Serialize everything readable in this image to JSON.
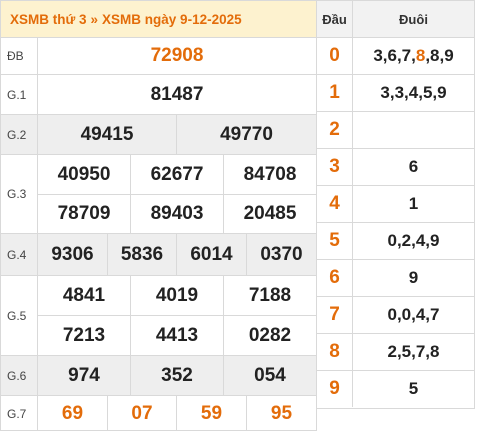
{
  "header": {
    "link1": "XSMB thứ 3",
    "separator": "»",
    "link2": "XSMB ngày 9-12-2025"
  },
  "prizes": [
    {
      "label": "ĐB",
      "values": [
        "72908"
      ]
    },
    {
      "label": "G.1",
      "values": [
        "81487"
      ]
    },
    {
      "label": "G.2",
      "values": [
        "49415",
        "49770"
      ]
    },
    {
      "label": "G.3",
      "values": [
        "40950",
        "62677",
        "84708",
        "78709",
        "89403",
        "20485"
      ]
    },
    {
      "label": "G.4",
      "values": [
        "9306",
        "5836",
        "6014",
        "0370"
      ]
    },
    {
      "label": "G.5",
      "values": [
        "4841",
        "4019",
        "7188",
        "7213",
        "4413",
        "0282"
      ]
    },
    {
      "label": "G.6",
      "values": [
        "974",
        "352",
        "054"
      ]
    },
    {
      "label": "G.7",
      "values": [
        "69",
        "07",
        "59",
        "95"
      ]
    }
  ],
  "loto": {
    "head_col1": "Đầu",
    "head_col2": "Đuôi",
    "rows": [
      {
        "head": "0",
        "tail": [
          "3,6,7,",
          "8",
          ",8,9"
        ]
      },
      {
        "head": "1",
        "tail": [
          "3,3,4,5,9"
        ]
      },
      {
        "head": "2",
        "tail": [
          ""
        ]
      },
      {
        "head": "3",
        "tail": [
          "6"
        ]
      },
      {
        "head": "4",
        "tail": [
          "1"
        ]
      },
      {
        "head": "5",
        "tail": [
          "0,2,4,9"
        ]
      },
      {
        "head": "6",
        "tail": [
          "9"
        ]
      },
      {
        "head": "7",
        "tail": [
          "0,0,4,7"
        ]
      },
      {
        "head": "8",
        "tail": [
          "2,5,7,8"
        ]
      },
      {
        "head": "9",
        "tail": [
          "5"
        ]
      }
    ]
  },
  "colors": {
    "accent": "#e36c0a",
    "header_bg": "#fdf2cf",
    "shade_bg": "#eeeeee",
    "border": "#d9d9d9"
  }
}
